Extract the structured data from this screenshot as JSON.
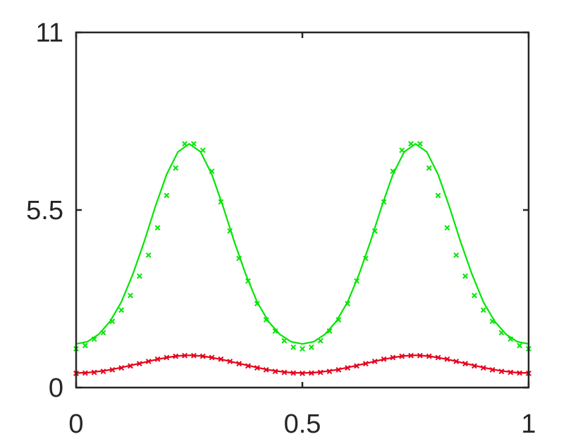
{
  "chart_data": {
    "type": "line",
    "title": "",
    "xlabel": "",
    "ylabel": "",
    "xlim": [
      0,
      1
    ],
    "ylim": [
      0,
      11
    ],
    "grid": false,
    "legend": "none",
    "xticks": [
      {
        "value": 0,
        "label": "0"
      },
      {
        "value": 0.5,
        "label": "0.5"
      },
      {
        "value": 1,
        "label": "1"
      }
    ],
    "yticks": [
      {
        "value": 0,
        "label": "0"
      },
      {
        "value": 5.5,
        "label": "5.5"
      },
      {
        "value": 11,
        "label": "11"
      }
    ],
    "series": [
      {
        "style": "line",
        "color": "#00e600",
        "x": [
          0,
          0.025,
          0.05,
          0.075,
          0.1,
          0.125,
          0.15,
          0.175,
          0.2,
          0.225,
          0.25,
          0.275,
          0.3,
          0.325,
          0.35,
          0.375,
          0.4,
          0.425,
          0.45,
          0.475,
          0.5,
          0.525,
          0.55,
          0.575,
          0.6,
          0.625,
          0.65,
          0.675,
          0.7,
          0.725,
          0.75,
          0.775,
          0.8,
          0.825,
          0.85,
          0.875,
          0.9,
          0.925,
          0.95,
          0.975,
          1
        ],
        "y": [
          1.35,
          1.42,
          1.65,
          2.05,
          2.65,
          3.5,
          4.5,
          5.6,
          6.6,
          7.3,
          7.55,
          7.3,
          6.6,
          5.6,
          4.5,
          3.5,
          2.65,
          2.05,
          1.65,
          1.42,
          1.35,
          1.42,
          1.65,
          2.05,
          2.65,
          3.5,
          4.5,
          5.6,
          6.6,
          7.3,
          7.55,
          7.3,
          6.6,
          5.6,
          4.5,
          3.5,
          2.65,
          2.05,
          1.65,
          1.42,
          1.35
        ]
      },
      {
        "style": "markers",
        "marker": "x",
        "color": "#00e600",
        "x": [
          0,
          0.02,
          0.04,
          0.06,
          0.08,
          0.1,
          0.12,
          0.14,
          0.16,
          0.18,
          0.2,
          0.22,
          0.24,
          0.26,
          0.28,
          0.3,
          0.32,
          0.34,
          0.36,
          0.38,
          0.4,
          0.42,
          0.44,
          0.46,
          0.48,
          0.5,
          0.52,
          0.54,
          0.56,
          0.58,
          0.6,
          0.62,
          0.64,
          0.66,
          0.68,
          0.7,
          0.72,
          0.74,
          0.76,
          0.78,
          0.8,
          0.82,
          0.84,
          0.86,
          0.88,
          0.9,
          0.92,
          0.94,
          0.96,
          0.98,
          1
        ],
        "y": [
          1.2,
          1.3,
          1.5,
          1.7,
          2.05,
          2.4,
          2.85,
          3.45,
          4.1,
          4.95,
          5.95,
          6.8,
          7.55,
          7.55,
          7.35,
          6.7,
          5.75,
          4.85,
          4.0,
          3.3,
          2.6,
          2.1,
          1.75,
          1.45,
          1.25,
          1.2,
          1.25,
          1.45,
          1.75,
          2.1,
          2.6,
          3.3,
          4.0,
          4.85,
          5.75,
          6.7,
          7.35,
          7.55,
          7.55,
          6.8,
          5.95,
          4.95,
          4.1,
          3.45,
          2.85,
          2.4,
          2.05,
          1.7,
          1.5,
          1.3,
          1.2
        ]
      },
      {
        "style": "line",
        "color": "#e6001a",
        "x": [
          0,
          0.025,
          0.05,
          0.075,
          0.1,
          0.125,
          0.15,
          0.175,
          0.2,
          0.225,
          0.25,
          0.275,
          0.3,
          0.325,
          0.35,
          0.375,
          0.4,
          0.425,
          0.45,
          0.475,
          0.5,
          0.525,
          0.55,
          0.575,
          0.6,
          0.625,
          0.65,
          0.675,
          0.7,
          0.725,
          0.75,
          0.775,
          0.8,
          0.825,
          0.85,
          0.875,
          0.9,
          0.925,
          0.95,
          0.975,
          1
        ],
        "y": [
          0.45,
          0.46,
          0.5,
          0.55,
          0.62,
          0.7,
          0.78,
          0.86,
          0.93,
          0.98,
          1.0,
          0.98,
          0.93,
          0.86,
          0.78,
          0.7,
          0.62,
          0.55,
          0.5,
          0.46,
          0.45,
          0.46,
          0.5,
          0.55,
          0.62,
          0.7,
          0.78,
          0.86,
          0.93,
          0.98,
          1.0,
          0.98,
          0.93,
          0.86,
          0.78,
          0.7,
          0.62,
          0.55,
          0.5,
          0.46,
          0.45
        ]
      },
      {
        "style": "markers",
        "marker": "x",
        "color": "#e6001a",
        "x": [
          0,
          0.02,
          0.04,
          0.06,
          0.08,
          0.1,
          0.12,
          0.14,
          0.16,
          0.18,
          0.2,
          0.22,
          0.24,
          0.26,
          0.28,
          0.3,
          0.32,
          0.34,
          0.36,
          0.38,
          0.4,
          0.42,
          0.44,
          0.46,
          0.48,
          0.5,
          0.52,
          0.54,
          0.56,
          0.58,
          0.6,
          0.62,
          0.64,
          0.66,
          0.68,
          0.7,
          0.72,
          0.74,
          0.76,
          0.78,
          0.8,
          0.82,
          0.84,
          0.86,
          0.88,
          0.9,
          0.92,
          0.94,
          0.96,
          0.98,
          1
        ],
        "y": [
          0.44,
          0.45,
          0.47,
          0.5,
          0.55,
          0.61,
          0.67,
          0.74,
          0.81,
          0.88,
          0.93,
          0.97,
          0.99,
          0.99,
          0.97,
          0.93,
          0.88,
          0.81,
          0.74,
          0.67,
          0.61,
          0.55,
          0.5,
          0.47,
          0.45,
          0.44,
          0.45,
          0.47,
          0.5,
          0.55,
          0.61,
          0.67,
          0.74,
          0.81,
          0.88,
          0.93,
          0.97,
          0.99,
          0.99,
          0.97,
          0.93,
          0.88,
          0.81,
          0.74,
          0.67,
          0.61,
          0.55,
          0.5,
          0.47,
          0.45,
          0.44
        ]
      }
    ]
  }
}
